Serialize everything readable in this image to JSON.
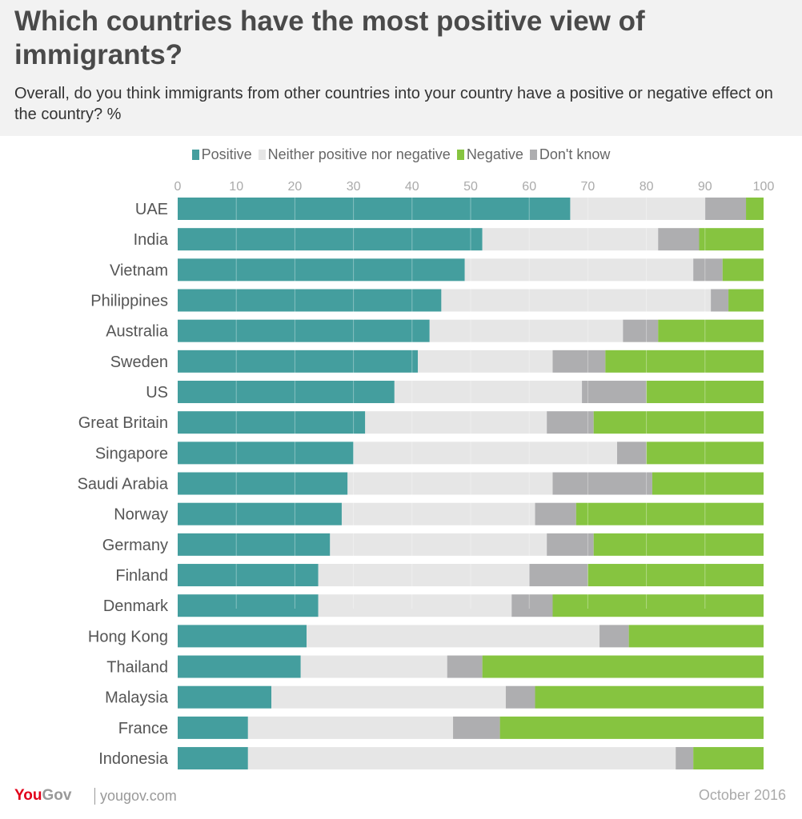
{
  "header": {
    "title": "Which countries have the most positive view of immigrants?",
    "subtitle": "Overall, do you think immigrants from other countries into your country have a positive or negative effect on the country? %"
  },
  "footer": {
    "logo": "YouGov",
    "site": "yougov.com",
    "date": "October 2016"
  },
  "colors": {
    "Positive": "#449e9e",
    "Neither positive nor negative": "#e6e6e6",
    "Negative": "#86c440",
    "Don't know": "#aeaeb0"
  },
  "chart_data": {
    "type": "bar",
    "orientation": "horizontal",
    "stacked": true,
    "xlim": [
      0,
      100
    ],
    "xticks": [
      0,
      10,
      20,
      30,
      40,
      50,
      60,
      70,
      80,
      90,
      100
    ],
    "grid": true,
    "legend": "top",
    "categories": [
      "UAE",
      "India",
      "Vietnam",
      "Philippines",
      "Australia",
      "Sweden",
      "US",
      "Great Britain",
      "Singapore",
      "Saudi Arabia",
      "Norway",
      "Germany",
      "Finland",
      "Denmark",
      "Hong Kong",
      "Thailand",
      "Malaysia",
      "France",
      "Indonesia"
    ],
    "series": [
      {
        "name": "Positive",
        "values": [
          67,
          52,
          49,
          45,
          43,
          41,
          37,
          32,
          30,
          29,
          28,
          26,
          24,
          24,
          22,
          21,
          16,
          12,
          12
        ]
      },
      {
        "name": "Neither positive nor negative",
        "values": [
          23,
          30,
          39,
          46,
          33,
          23,
          32,
          31,
          45,
          35,
          33,
          37,
          36,
          33,
          50,
          25,
          40,
          35,
          73
        ]
      },
      {
        "name": "Don't know",
        "values": [
          7,
          7,
          5,
          3,
          6,
          9,
          11,
          8,
          5,
          17,
          7,
          8,
          10,
          7,
          5,
          6,
          5,
          8,
          3
        ]
      },
      {
        "name": "Negative",
        "values": [
          3,
          11,
          7,
          6,
          18,
          27,
          20,
          29,
          20,
          19,
          32,
          29,
          30,
          36,
          23,
          48,
          39,
          45,
          12
        ]
      }
    ]
  }
}
